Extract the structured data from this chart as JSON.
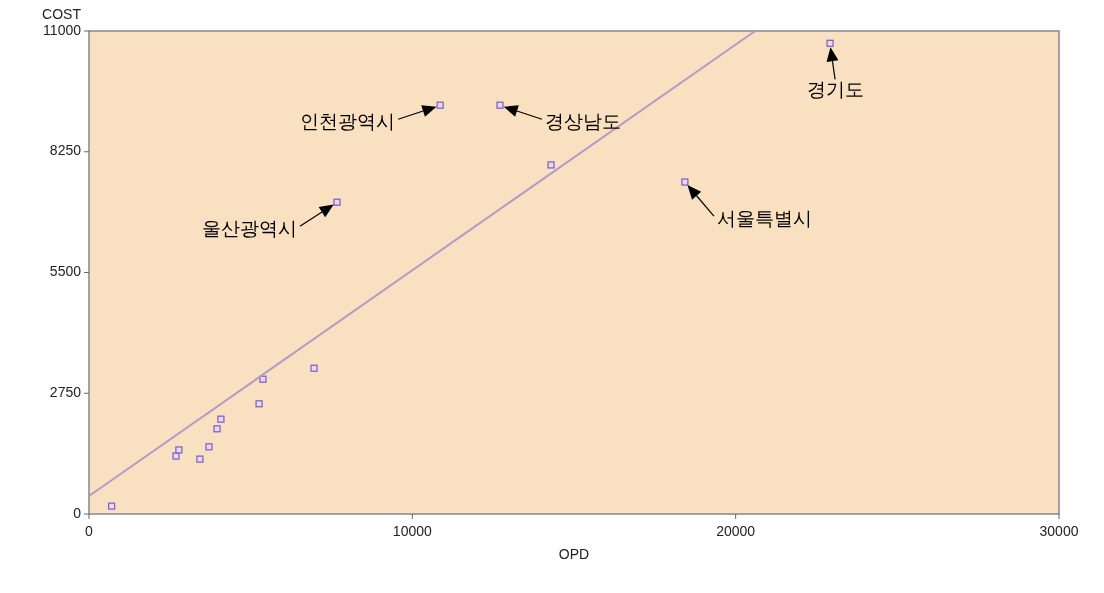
{
  "chart_data": {
    "type": "scatter",
    "xlabel": "OPD",
    "ylabel": "COST",
    "xlim": [
      0,
      30000
    ],
    "ylim": [
      0,
      11000
    ],
    "xticks": [
      0,
      10000,
      20000,
      30000
    ],
    "yticks": [
      0,
      2750,
      5500,
      8250,
      11000
    ],
    "grid": false,
    "marker": "square",
    "series": [
      {
        "type": "scatter",
        "color": "#7a5cc8",
        "x": [
          700,
          2690,
          2780,
          3430,
          3710,
          3960,
          4080,
          5260,
          5380,
          6960,
          7670,
          10860,
          12710,
          14290,
          18430,
          22920
        ],
        "values": [
          180,
          1320,
          1460,
          1250,
          1530,
          1940,
          2160,
          2510,
          3070,
          3320,
          7100,
          9310,
          9310,
          7950,
          7560,
          10720
        ]
      },
      {
        "type": "line",
        "color": "#b59ac8",
        "marker": "none",
        "line_style": "solid",
        "x": [
          0,
          20600
        ],
        "values": [
          410,
          11000
        ]
      }
    ],
    "annotations": [
      {
        "text": "인천광역시",
        "x": 10860,
        "y": 9310
      },
      {
        "text": "경상남도",
        "x": 12710,
        "y": 9310
      },
      {
        "text": "경기도",
        "x": 22920,
        "y": 10720
      },
      {
        "text": "울산광역시",
        "x": 7670,
        "y": 7100
      },
      {
        "text": "서울특별시",
        "x": 18430,
        "y": 7560
      }
    ]
  }
}
